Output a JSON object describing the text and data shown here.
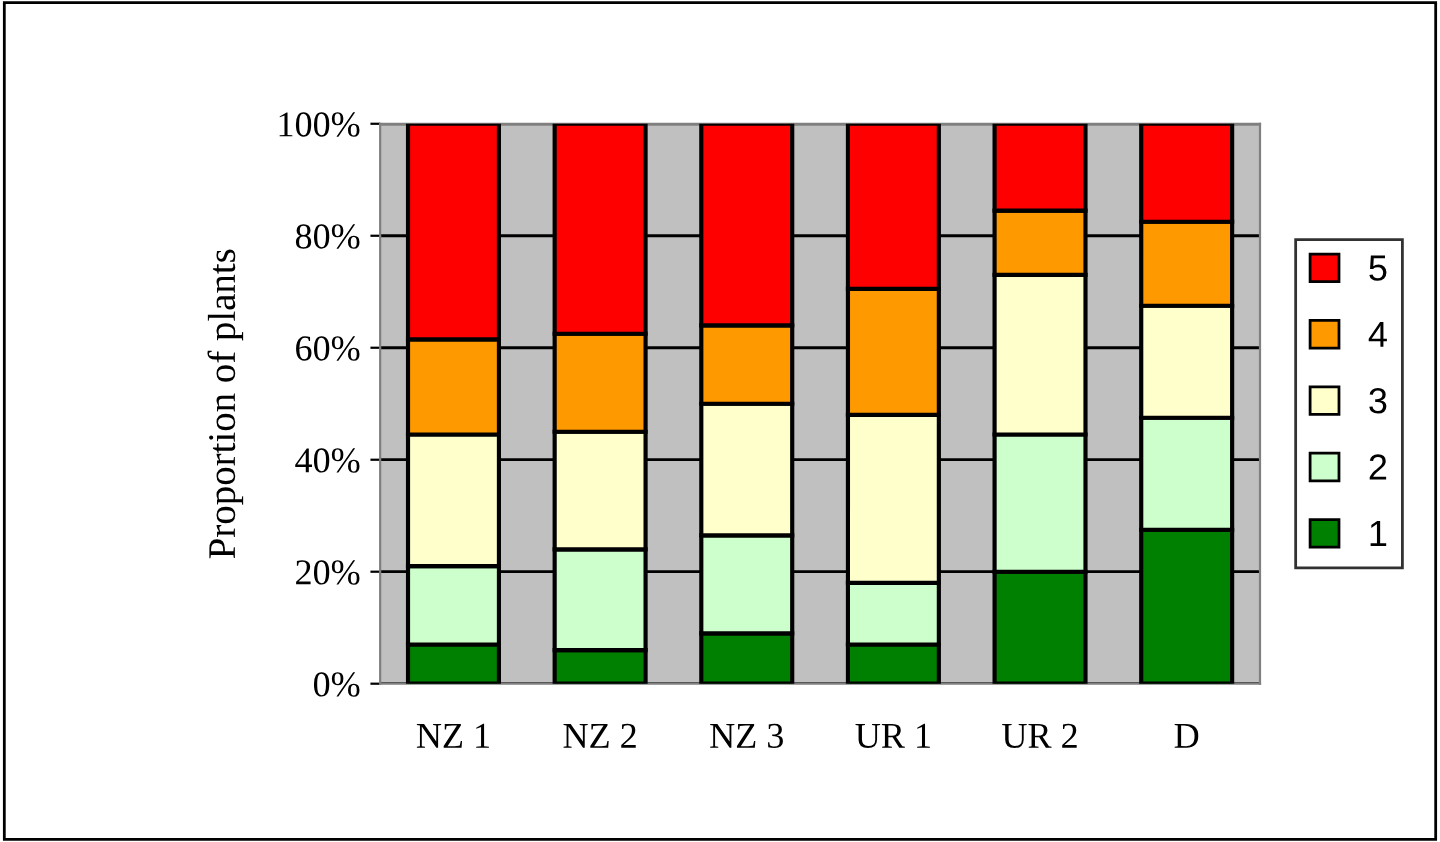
{
  "chart_data": {
    "type": "bar",
    "stacked": true,
    "ylabel": "Proportion of plants",
    "categories": [
      "NZ 1",
      "NZ 2",
      "NZ 3",
      "UR 1",
      "UR 2",
      "D"
    ],
    "series": [
      {
        "name": "1",
        "color": "#008000",
        "values": [
          7,
          6,
          9,
          7,
          20,
          27.5
        ]
      },
      {
        "name": "2",
        "color": "#ccffcc",
        "values": [
          14,
          18,
          17.5,
          11,
          24.5,
          20
        ]
      },
      {
        "name": "3",
        "color": "#ffffcc",
        "values": [
          23.5,
          21,
          23.5,
          30,
          28.5,
          20
        ]
      },
      {
        "name": "4",
        "color": "#ff9900",
        "values": [
          17,
          17.5,
          14,
          22.5,
          11.5,
          15
        ]
      },
      {
        "name": "5",
        "color": "#ff0000",
        "values": [
          38.5,
          37.5,
          36,
          29.5,
          15.5,
          17.5
        ]
      }
    ],
    "ylim": [
      0,
      100
    ],
    "yticks": [
      {
        "value": 0,
        "label": "0%"
      },
      {
        "value": 20,
        "label": "20%"
      },
      {
        "value": 40,
        "label": "40%"
      },
      {
        "value": 60,
        "label": "60%"
      },
      {
        "value": 80,
        "label": "80%"
      },
      {
        "value": 100,
        "label": "100%"
      }
    ],
    "grid": "y",
    "legend": "right"
  }
}
